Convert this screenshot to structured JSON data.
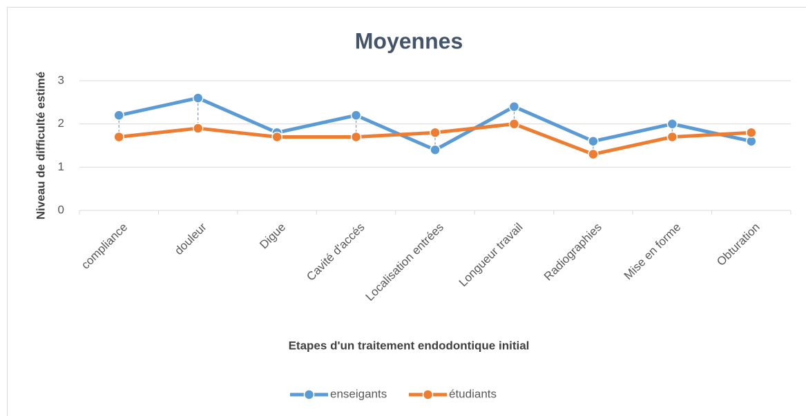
{
  "chart_data": {
    "type": "line",
    "title": "Moyennes",
    "x_label": "Etapes d'un traitement endodontique initial",
    "y_label": "Niveau de difficulté estimé",
    "categories": [
      "compliance",
      "douleur",
      "Digue",
      "Cavité d'accés",
      "Localisation entrées",
      "Longueur travail",
      "Radiographies",
      "Mise en forme",
      "Obturation"
    ],
    "series": [
      {
        "name": "enseigants",
        "color": "#5b9bd5",
        "values": [
          2.2,
          2.6,
          1.8,
          2.2,
          1.4,
          2.4,
          1.6,
          2.0,
          1.6
        ]
      },
      {
        "name": "étudiants",
        "color": "#ed7d31",
        "values": [
          1.7,
          1.9,
          1.7,
          1.7,
          1.8,
          2.0,
          1.3,
          1.7,
          1.8
        ]
      }
    ],
    "ylim": [
      0,
      3
    ],
    "yticks": [
      0,
      1,
      2,
      3
    ],
    "grid": true,
    "legend": "bottom"
  }
}
